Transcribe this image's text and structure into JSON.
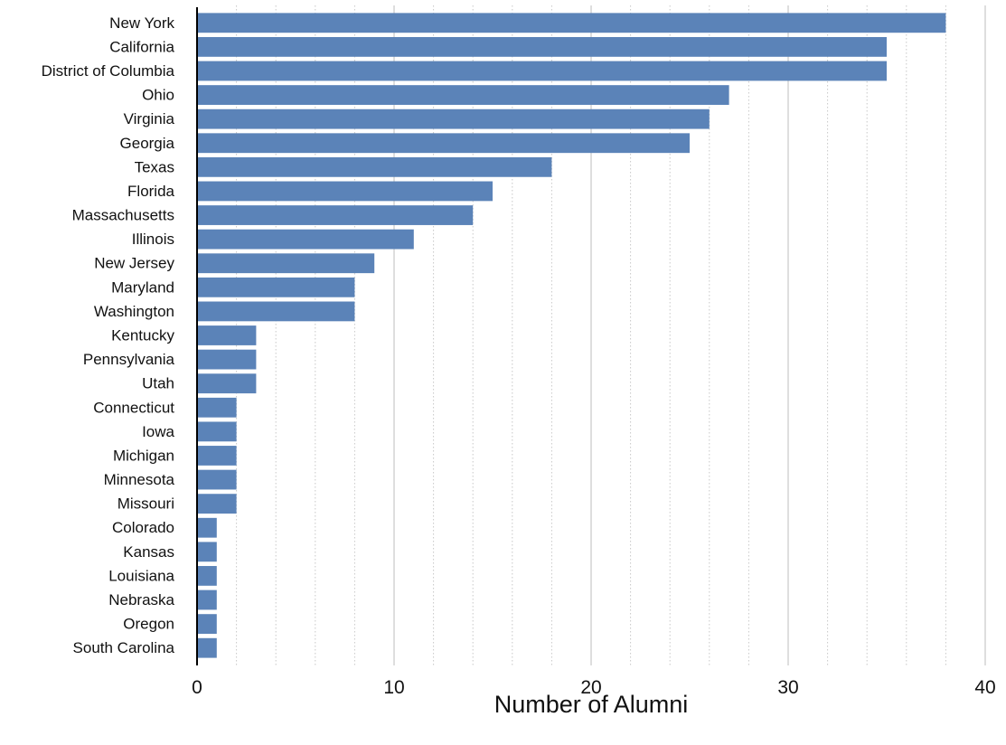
{
  "chart_data": {
    "type": "bar",
    "orientation": "horizontal",
    "categories": [
      "New York",
      "California",
      "District of Columbia",
      "Ohio",
      "Virginia",
      "Georgia",
      "Texas",
      "Florida",
      "Massachusetts",
      "Illinois",
      "New Jersey",
      "Maryland",
      "Washington",
      "Kentucky",
      "Pennsylvania",
      "Utah",
      "Connecticut",
      "Iowa",
      "Michigan",
      "Minnesota",
      "Missouri",
      "Colorado",
      "Kansas",
      "Louisiana",
      "Nebraska",
      "Oregon",
      "South Carolina"
    ],
    "values": [
      38,
      35,
      35,
      27,
      26,
      25,
      18,
      15,
      14,
      11,
      9,
      8,
      8,
      3,
      3,
      3,
      2,
      2,
      2,
      2,
      2,
      1,
      1,
      1,
      1,
      1,
      1
    ],
    "xlabel": "Number of Alumni",
    "ylabel": "",
    "xlim": [
      0,
      40
    ],
    "xticks": [
      0,
      10,
      20,
      30,
      40
    ],
    "minor_gridlines_every": 2,
    "grid": true,
    "bar_color": "#5b83b8",
    "major_grid_color": "#bdbdbd",
    "minor_grid_color": "#c8c8c8"
  }
}
